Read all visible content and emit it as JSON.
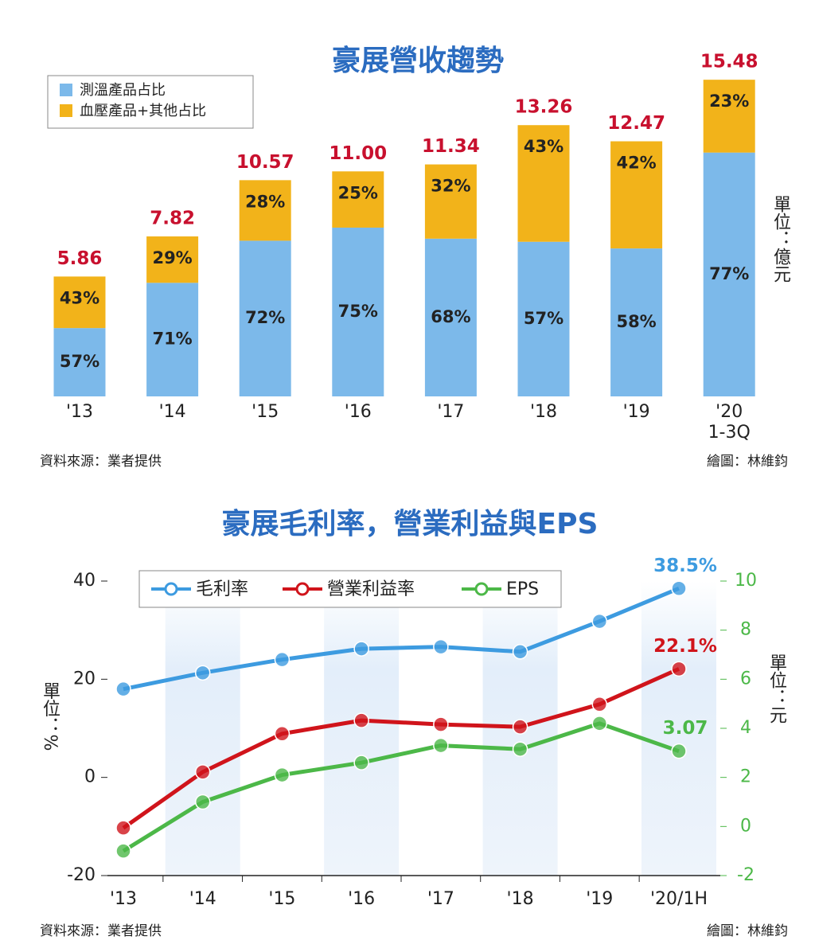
{
  "chart_data": [
    {
      "type": "bar",
      "stacked": true,
      "title": "豪展營收趨勢",
      "categories": [
        "'13",
        "'14",
        "'15",
        "'16",
        "'17",
        "'18",
        "'19",
        "'20\n1-3Q"
      ],
      "values": [
        5.86,
        7.82,
        10.57,
        11.0,
        11.34,
        13.26,
        12.47,
        15.48
      ],
      "value_labels": [
        "5.86",
        "7.82",
        "10.57",
        "11.00",
        "11.34",
        "13.26",
        "12.47",
        "15.48"
      ],
      "series": [
        {
          "name": "測溫產品占比",
          "color": "#7cb9ea",
          "values": [
            57,
            71,
            72,
            75,
            68,
            57,
            58,
            77
          ],
          "value_labels": [
            "57%",
            "71%",
            "72%",
            "75%",
            "68%",
            "57%",
            "58%",
            "77%"
          ]
        },
        {
          "name": "血壓產品+其他占比",
          "color": "#f2b31a",
          "values": [
            43,
            29,
            28,
            25,
            32,
            43,
            42,
            23
          ],
          "value_labels": [
            "43%",
            "29%",
            "28%",
            "25%",
            "32%",
            "43%",
            "42%",
            "23%"
          ]
        }
      ],
      "unit_label": "單位：億元",
      "legend": "upper left",
      "source": "資料來源：業者提供",
      "credit": "繪圖：林維鈞"
    },
    {
      "type": "line",
      "title": "豪展毛利率，營業利益與EPS",
      "categories": [
        "'13",
        "'14",
        "'15",
        "'16",
        "'17",
        "'18",
        "'19",
        "'20/1H"
      ],
      "ylim": [
        -20,
        40
      ],
      "yticks": [
        -20,
        0,
        20,
        40
      ],
      "y2lim": [
        -2,
        10
      ],
      "y2ticks": [
        -2,
        0,
        2,
        4,
        6,
        8,
        10
      ],
      "series": [
        {
          "name": "毛利率",
          "color": "#3d9be0",
          "values": [
            18,
            21.3,
            24,
            26.2,
            26.6,
            25.6,
            31.8,
            38.5
          ],
          "value_labels": [
            null,
            null,
            null,
            null,
            null,
            null,
            null,
            "38.5%"
          ]
        },
        {
          "name": "營業利益率",
          "color": "#d0141b",
          "values": [
            -10.3,
            1.1,
            8.9,
            11.6,
            10.8,
            10.3,
            14.9,
            22.1
          ],
          "value_labels": [
            null,
            null,
            null,
            null,
            null,
            null,
            null,
            "22.1%"
          ]
        },
        {
          "name": "EPS",
          "axis": "y2",
          "color": "#4cb848",
          "values": [
            -1.0,
            1.0,
            2.1,
            2.6,
            3.3,
            3.15,
            4.2,
            3.07
          ],
          "value_labels": [
            null,
            null,
            null,
            null,
            null,
            null,
            null,
            "3.07"
          ]
        }
      ],
      "ylabel": "單位：%",
      "y2label": "單位：元",
      "legend": "upper left",
      "source": "資料來源：業者提供",
      "credit": "繪圖：林維鈞"
    }
  ]
}
